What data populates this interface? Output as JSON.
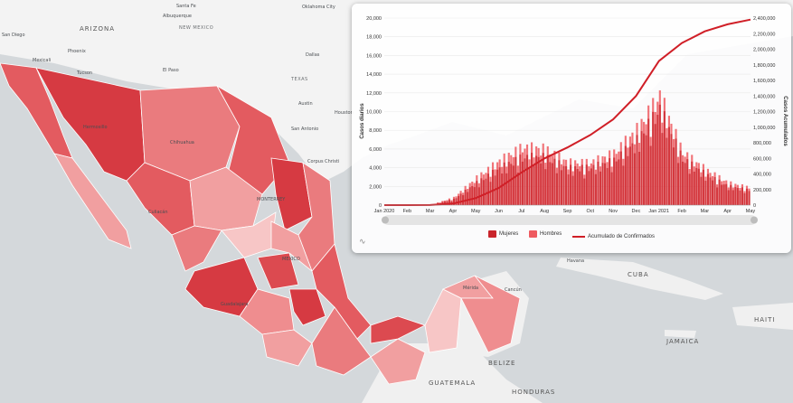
{
  "map": {
    "labels": [
      {
        "key": "arizona",
        "text": "ARIZONA",
        "cls": "country"
      },
      {
        "key": "mexico_us",
        "text": "NEW MEXICO",
        "cls": ""
      },
      {
        "key": "texas",
        "text": "TEXAS",
        "cls": ""
      },
      {
        "key": "oklahoma",
        "text": "Oklahoma City",
        "cls": "city"
      },
      {
        "key": "santafe",
        "text": "Santa Fe",
        "cls": "city"
      },
      {
        "key": "albuquerque",
        "text": "Albuquerque",
        "cls": "city"
      },
      {
        "key": "phoenix",
        "text": "Phoenix",
        "cls": "city"
      },
      {
        "key": "tucson",
        "text": "Tucson",
        "cls": "city"
      },
      {
        "key": "elpaso",
        "text": "El Paso",
        "cls": "city"
      },
      {
        "key": "dallas",
        "text": "Dallas",
        "cls": "city"
      },
      {
        "key": "austin",
        "text": "Austin",
        "cls": "city"
      },
      {
        "key": "houston",
        "text": "Houston",
        "cls": "city"
      },
      {
        "key": "sanantonio",
        "text": "San Antonio",
        "cls": "city"
      },
      {
        "key": "corpus",
        "text": "Corpus Christi",
        "cls": "city"
      },
      {
        "key": "monterrey",
        "text": "MONTERREY",
        "cls": "city"
      },
      {
        "key": "mexicocity",
        "text": "MEXICO",
        "cls": "city"
      },
      {
        "key": "guatemala",
        "text": "GUATEMALA",
        "cls": "country"
      },
      {
        "key": "honduras",
        "text": "HONDURAS",
        "cls": "country"
      },
      {
        "key": "belize",
        "text": "BELIZE",
        "cls": "country"
      },
      {
        "key": "haiti",
        "text": "HAITI",
        "cls": "country"
      },
      {
        "key": "jamaica",
        "text": "JAMAICA",
        "cls": "country"
      },
      {
        "key": "cuba",
        "text": "CUBA",
        "cls": "country"
      },
      {
        "key": "havana",
        "text": "Havana",
        "cls": "city"
      },
      {
        "key": "sandiego",
        "text": "San Diego",
        "cls": "city"
      },
      {
        "key": "mexicali",
        "text": "Mexicali",
        "cls": "city"
      },
      {
        "key": "hermosillo",
        "text": "Hermosillo",
        "cls": "city"
      },
      {
        "key": "chihuahua",
        "text": "Chihuahua",
        "cls": "city"
      },
      {
        "key": "culiacan",
        "text": "Culiacán",
        "cls": "city"
      },
      {
        "key": "guadalajara",
        "text": "Guadalajara",
        "cls": "city"
      },
      {
        "key": "merida",
        "text": "Mérida",
        "cls": "city"
      },
      {
        "key": "cancun",
        "text": "Cancún",
        "cls": "city"
      }
    ],
    "state_colors": [
      "#d63a42",
      "#e35b60",
      "#ea7b7e",
      "#f19fa0",
      "#f7c6c6",
      "#dc4a50",
      "#ef8d8f"
    ]
  },
  "chart": {
    "yleft_title": "Casos diarios",
    "yright_title": "Casos Acumulados",
    "yleft_ticks": [
      "0",
      "2,000",
      "4,000",
      "6,000",
      "8,000",
      "10,000",
      "12,000",
      "14,000",
      "16,000",
      "18,000",
      "20,000"
    ],
    "yright_ticks": [
      "0",
      "200,000",
      "400,000",
      "600,000",
      "800,000",
      "1,000,000",
      "1,200,000",
      "1,400,000",
      "1,600,000",
      "1,800,000",
      "2,000,000",
      "2,200,000",
      "2,400,000"
    ],
    "x_ticks": [
      "Jan 2020",
      "Feb",
      "Mar",
      "Apr",
      "May",
      "Jun",
      "Jul",
      "Aug",
      "Sep",
      "Oct",
      "Nov",
      "Dec",
      "Jan 2021",
      "Feb",
      "Mar",
      "Apr",
      "May"
    ],
    "legend": [
      {
        "label": "Mujeres",
        "color": "#c9242b",
        "kind": "box"
      },
      {
        "label": "Hombres",
        "color": "#ee5a60",
        "kind": "box"
      },
      {
        "label": "Acumulado de Confirmados",
        "color": "#d01f27",
        "kind": "line"
      }
    ]
  },
  "chart_data": {
    "type": "bar",
    "title": "",
    "xlabel": "",
    "ylabel": "Casos diarios",
    "y2label": "Casos Acumulados",
    "ylim": [
      0,
      20000
    ],
    "y2lim": [
      0,
      2400000
    ],
    "categories": [
      "Jan 2020",
      "Feb",
      "Mar",
      "Apr",
      "May",
      "Jun",
      "Jul",
      "Aug",
      "Sep",
      "Oct",
      "Nov",
      "Dec",
      "Jan 2021",
      "Feb",
      "Mar",
      "Apr",
      "May"
    ],
    "series": [
      {
        "name": "Hombres",
        "type": "bar",
        "values": [
          0,
          0,
          20,
          900,
          3200,
          5200,
          6800,
          6600,
          5000,
          5000,
          6100,
          8800,
          12800,
          6200,
          4200,
          2600,
          2000
        ]
      },
      {
        "name": "Mujeres",
        "type": "bar",
        "values": [
          0,
          0,
          15,
          700,
          2600,
          4300,
          5600,
          5600,
          4300,
          4400,
          5200,
          7500,
          11200,
          5400,
          3600,
          2200,
          1700
        ]
      },
      {
        "name": "Acumulado de Confirmados",
        "type": "line",
        "values": [
          0,
          0,
          1000,
          20000,
          90000,
          220000,
          420000,
          600000,
          740000,
          900000,
          1100000,
          1400000,
          1850000,
          2080000,
          2230000,
          2320000,
          2380000
        ]
      }
    ]
  }
}
